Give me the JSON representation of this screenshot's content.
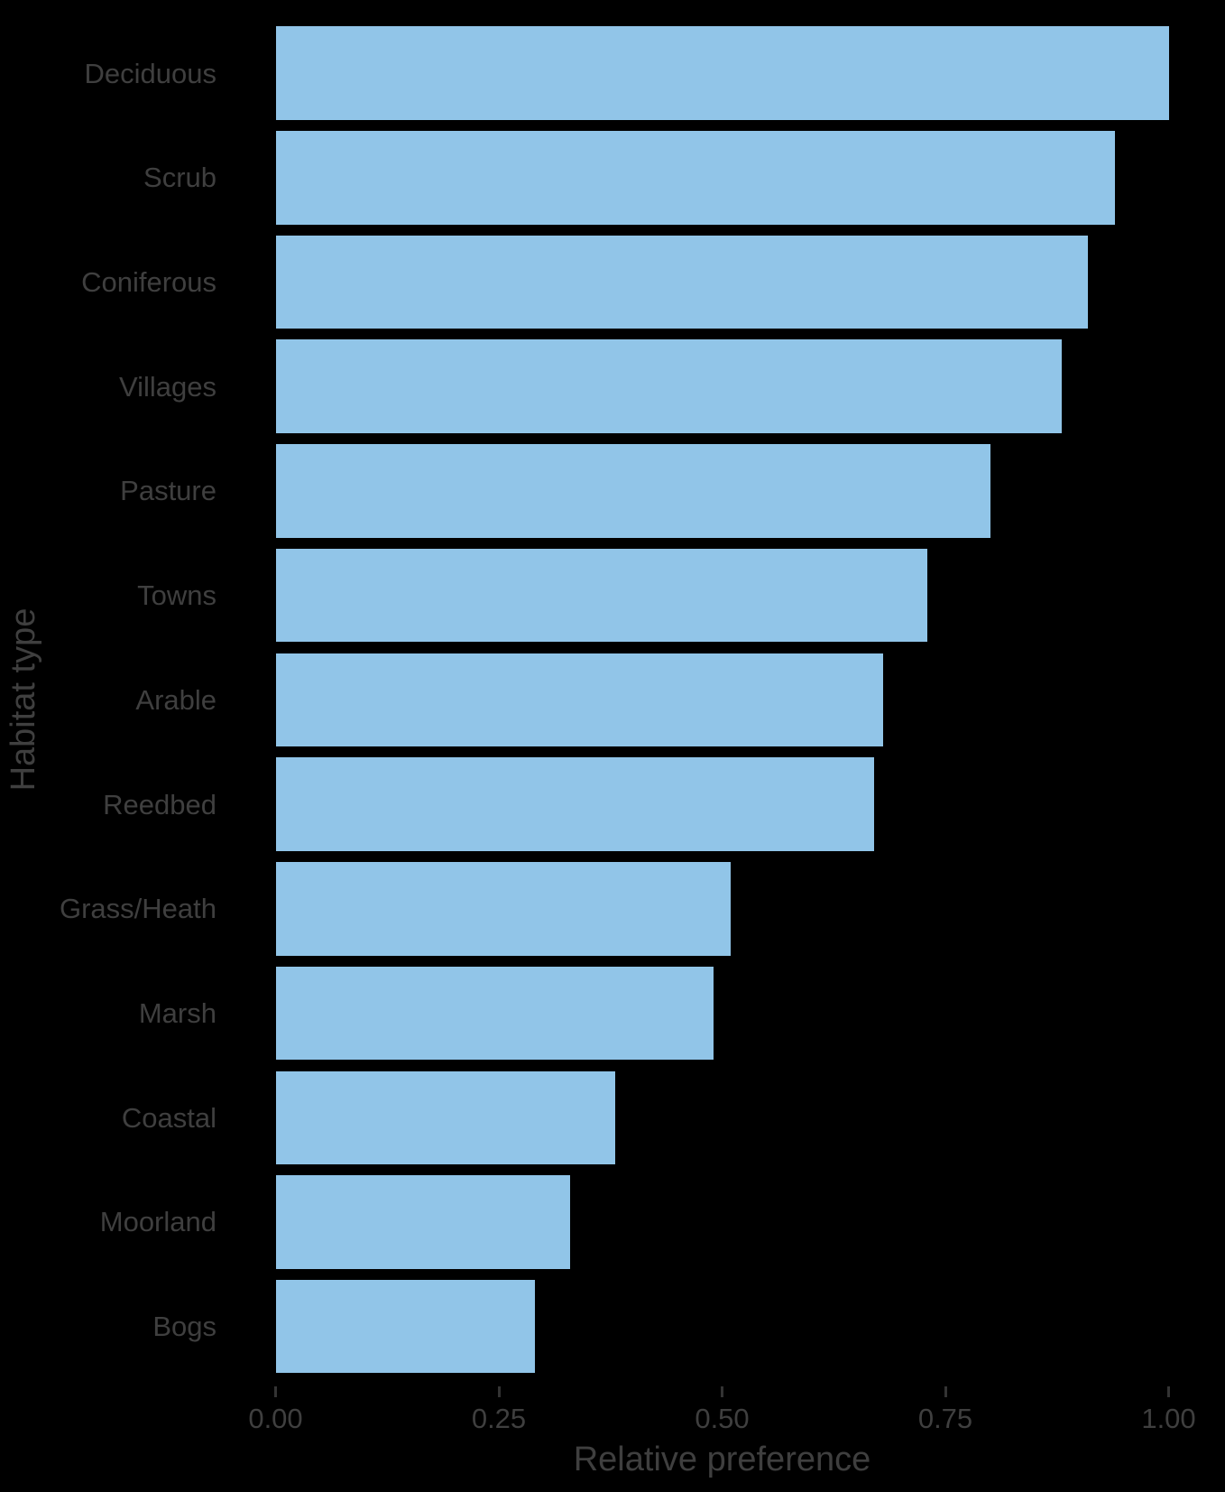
{
  "chart_data": {
    "type": "bar",
    "orientation": "horizontal",
    "title": "",
    "xlabel": "Relative preference",
    "ylabel": "Habitat type",
    "categories": [
      "Deciduous",
      "Scrub",
      "Coniferous",
      "Villages",
      "Pasture",
      "Towns",
      "Arable",
      "Reedbed",
      "Grass/Heath",
      "Marsh",
      "Coastal",
      "Moorland",
      "Bogs"
    ],
    "values": [
      1.0,
      0.94,
      0.91,
      0.88,
      0.8,
      0.73,
      0.68,
      0.67,
      0.51,
      0.49,
      0.38,
      0.33,
      0.29
    ],
    "xlim": [
      0.0,
      1.0
    ],
    "x_ticks": [
      {
        "value": 0.0,
        "label": "0.00"
      },
      {
        "value": 0.25,
        "label": "0.25"
      },
      {
        "value": 0.5,
        "label": "0.50"
      },
      {
        "value": 0.75,
        "label": "0.75"
      },
      {
        "value": 1.0,
        "label": "1.00"
      }
    ],
    "grid": false,
    "legend": "none"
  },
  "colors": {
    "background": "#000000",
    "bar_fill": "#91C5E8",
    "axis_text": "#3F3F3F",
    "tick_mark": "#333333"
  }
}
